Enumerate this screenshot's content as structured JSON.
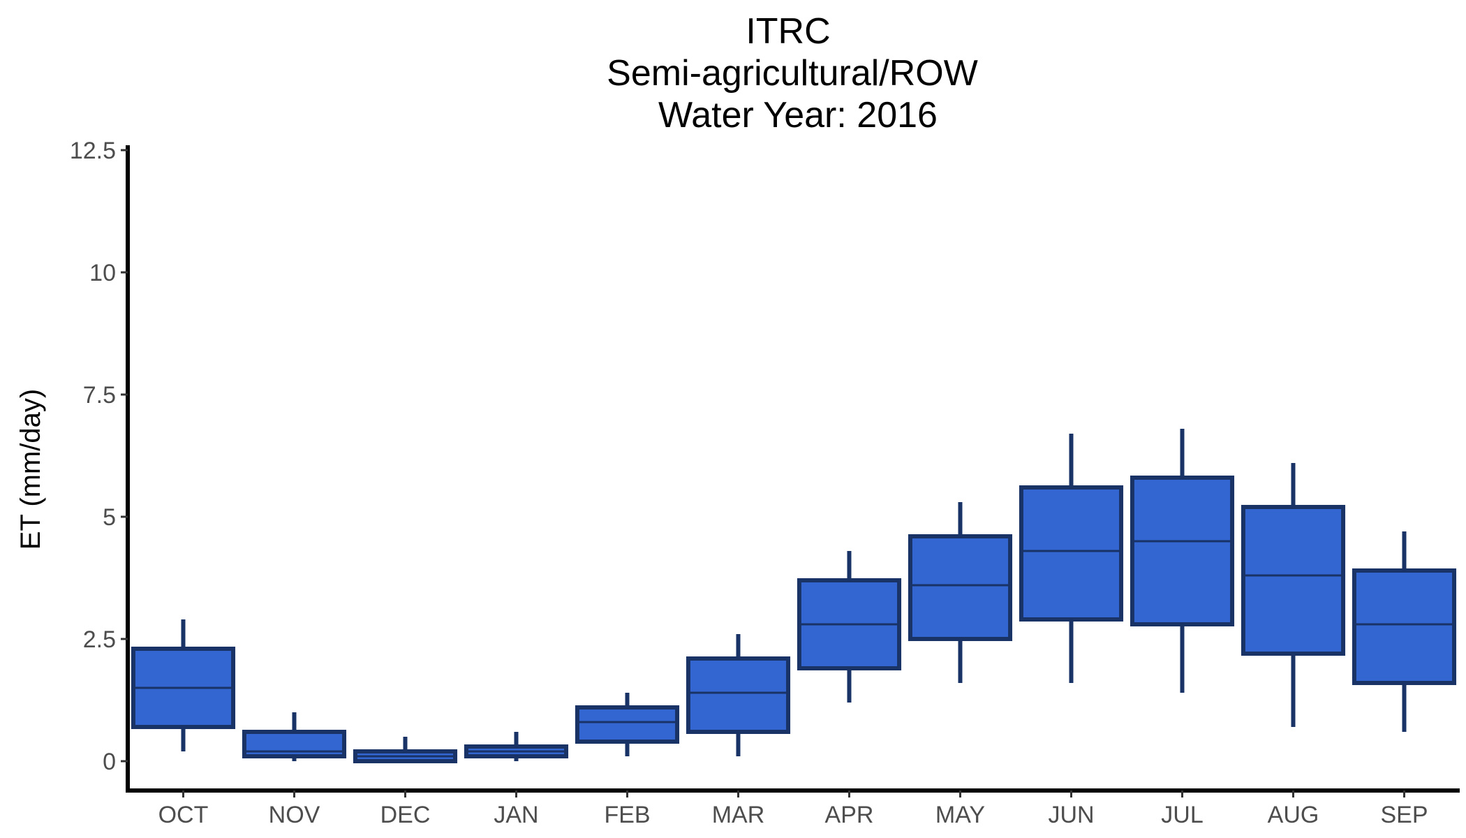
{
  "chart_data": {
    "type": "boxplot",
    "title": [
      "ITRC",
      "Semi-agricultural/ROW",
      "Water Year: 2016"
    ],
    "xlabel": "",
    "ylabel": "ET (mm/day)",
    "ylim": [
      -0.6,
      12.6
    ],
    "yticks": [
      0,
      2.5,
      5,
      7.5,
      10,
      12.5
    ],
    "ytick_labels": [
      "0",
      "2.5",
      "5",
      "7.5",
      "10",
      "12.5"
    ],
    "categories": [
      "OCT",
      "NOV",
      "DEC",
      "JAN",
      "FEB",
      "MAR",
      "APR",
      "MAY",
      "JUN",
      "JUL",
      "AUG",
      "SEP"
    ],
    "grid": false,
    "legend": "none",
    "colors": {
      "box_fill": "#3366d1",
      "box_stroke": "#1a3366",
      "axis": "#000000"
    },
    "boxes": [
      {
        "month": "OCT",
        "whisker_low": 0.2,
        "q1": 0.7,
        "median": 1.5,
        "q3": 2.3,
        "whisker_high": 2.9
      },
      {
        "month": "NOV",
        "whisker_low": 0.0,
        "q1": 0.1,
        "median": 0.2,
        "q3": 0.6,
        "whisker_high": 1.0
      },
      {
        "month": "DEC",
        "whisker_low": 0.0,
        "q1": 0.0,
        "median": 0.1,
        "q3": 0.2,
        "whisker_high": 0.5
      },
      {
        "month": "JAN",
        "whisker_low": 0.0,
        "q1": 0.1,
        "median": 0.2,
        "q3": 0.3,
        "whisker_high": 0.6
      },
      {
        "month": "FEB",
        "whisker_low": 0.1,
        "q1": 0.4,
        "median": 0.8,
        "q3": 1.1,
        "whisker_high": 1.4
      },
      {
        "month": "MAR",
        "whisker_low": 0.1,
        "q1": 0.6,
        "median": 1.4,
        "q3": 2.1,
        "whisker_high": 2.6
      },
      {
        "month": "APR",
        "whisker_low": 1.2,
        "q1": 1.9,
        "median": 2.8,
        "q3": 3.7,
        "whisker_high": 4.3
      },
      {
        "month": "MAY",
        "whisker_low": 1.6,
        "q1": 2.5,
        "median": 3.6,
        "q3": 4.6,
        "whisker_high": 5.3
      },
      {
        "month": "JUN",
        "whisker_low": 1.6,
        "q1": 2.9,
        "median": 4.3,
        "q3": 5.6,
        "whisker_high": 6.7
      },
      {
        "month": "JUL",
        "whisker_low": 1.4,
        "q1": 2.8,
        "median": 4.5,
        "q3": 5.8,
        "whisker_high": 6.8
      },
      {
        "month": "AUG",
        "whisker_low": 0.7,
        "q1": 2.2,
        "median": 3.8,
        "q3": 5.2,
        "whisker_high": 6.1
      },
      {
        "month": "SEP",
        "whisker_low": 0.6,
        "q1": 1.6,
        "median": 2.8,
        "q3": 3.9,
        "whisker_high": 4.7
      }
    ]
  }
}
